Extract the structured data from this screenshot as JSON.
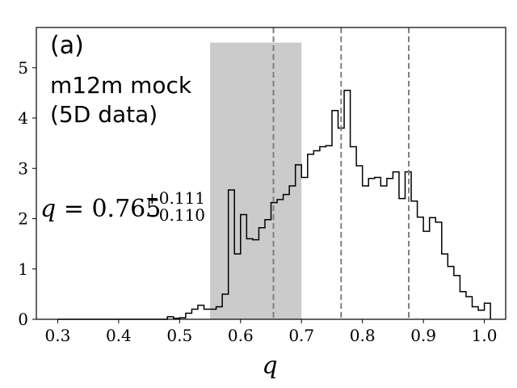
{
  "chart_data": {
    "type": "bar",
    "title": "",
    "panel_tag": "(a)",
    "annotation_lines": [
      "m12m mock",
      "(5D data)"
    ],
    "result": {
      "symbol": "q",
      "value": "0.765",
      "upper": "+0.111",
      "lower": "−0.110"
    },
    "xlabel": "q",
    "ylabel": "",
    "xlim": [
      0.265,
      1.035
    ],
    "ylim": [
      0,
      5.8
    ],
    "xticks": [
      0.3,
      0.4,
      0.5,
      0.6,
      0.7,
      0.8,
      0.9,
      1.0
    ],
    "xtick_labels": [
      "0.3",
      "0.4",
      "0.5",
      "0.6",
      "0.7",
      "0.8",
      "0.9",
      "1.0"
    ],
    "yticks": [
      0,
      1,
      2,
      3,
      4,
      5
    ],
    "ytick_labels": [
      "0",
      "1",
      "2",
      "3",
      "4",
      "5"
    ],
    "grid": false,
    "shaded_band": {
      "x0": 0.55,
      "x1": 0.7,
      "y_top": 5.5,
      "color": "#cbcbcb"
    },
    "vlines": [
      0.654,
      0.765,
      0.876
    ],
    "vline_style": "dashed",
    "histogram": {
      "bin_start": 0.3,
      "bin_width": 0.01,
      "step_color": "#000000",
      "values": [
        0,
        0,
        0,
        0,
        0,
        0,
        0,
        0,
        0,
        0,
        0,
        0,
        0,
        0,
        0,
        0,
        0,
        0,
        0.05,
        0.02,
        0.03,
        0.12,
        0.2,
        0.28,
        0.2,
        0.2,
        0.25,
        0.5,
        2.57,
        1.3,
        2.08,
        1.6,
        1.58,
        1.82,
        1.98,
        2.32,
        2.38,
        2.48,
        2.65,
        3.07,
        2.82,
        3.28,
        3.35,
        3.43,
        3.45,
        4.15,
        3.8,
        4.55,
        3.43,
        3.05,
        2.65,
        2.8,
        2.82,
        2.65,
        2.8,
        2.93,
        2.4,
        2.93,
        2.35,
        2.03,
        1.75,
        2.02,
        1.93,
        1.3,
        1.05,
        0.87,
        0.55,
        0.45,
        0.25,
        0.18,
        0.32
      ]
    }
  }
}
